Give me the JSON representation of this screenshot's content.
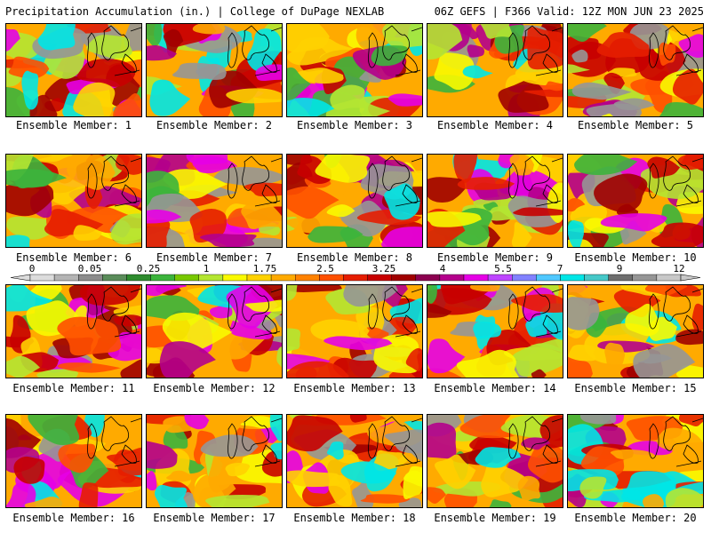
{
  "header": {
    "left": "Precipitation Accumulation (in.) | College of DuPage NEXLAB",
    "right": "06Z GEFS | F366 Valid: 12Z MON JUN 23 2025"
  },
  "colorbar": {
    "labels": [
      "0",
      "0.05",
      "0.25",
      "1",
      "1.75",
      "2.5",
      "3.25",
      "4",
      "5.5",
      "7",
      "9",
      "12"
    ],
    "colors": [
      "#dcdcdc",
      "#b4b4b4",
      "#8c8c8c",
      "#5a8c5a",
      "#2e8b2e",
      "#3cb43c",
      "#78c800",
      "#b4e632",
      "#fafa00",
      "#ffd200",
      "#ffaa00",
      "#ff8200",
      "#ff5000",
      "#e61e00",
      "#c80000",
      "#a00000",
      "#8c0050",
      "#b4008c",
      "#e600e6",
      "#be46ff",
      "#8282ff",
      "#50c8ff",
      "#00e6e6",
      "#46c8c8",
      "#6e6e6e",
      "#969696",
      "#c8c8c8"
    ]
  },
  "members": [
    {
      "label": "Ensemble Member: 1"
    },
    {
      "label": "Ensemble Member: 2"
    },
    {
      "label": "Ensemble Member: 3"
    },
    {
      "label": "Ensemble Member: 4"
    },
    {
      "label": "Ensemble Member: 5"
    },
    {
      "label": "Ensemble Member: 6"
    },
    {
      "label": "Ensemble Member: 7"
    },
    {
      "label": "Ensemble Member: 8"
    },
    {
      "label": "Ensemble Member: 9"
    },
    {
      "label": "Ensemble Member: 10"
    },
    {
      "label": "Ensemble Member: 11"
    },
    {
      "label": "Ensemble Member: 12"
    },
    {
      "label": "Ensemble Member: 13"
    },
    {
      "label": "Ensemble Member: 14"
    },
    {
      "label": "Ensemble Member: 15"
    },
    {
      "label": "Ensemble Member: 16"
    },
    {
      "label": "Ensemble Member: 17"
    },
    {
      "label": "Ensemble Member: 18"
    },
    {
      "label": "Ensemble Member: 19"
    },
    {
      "label": "Ensemble Member: 20"
    }
  ]
}
